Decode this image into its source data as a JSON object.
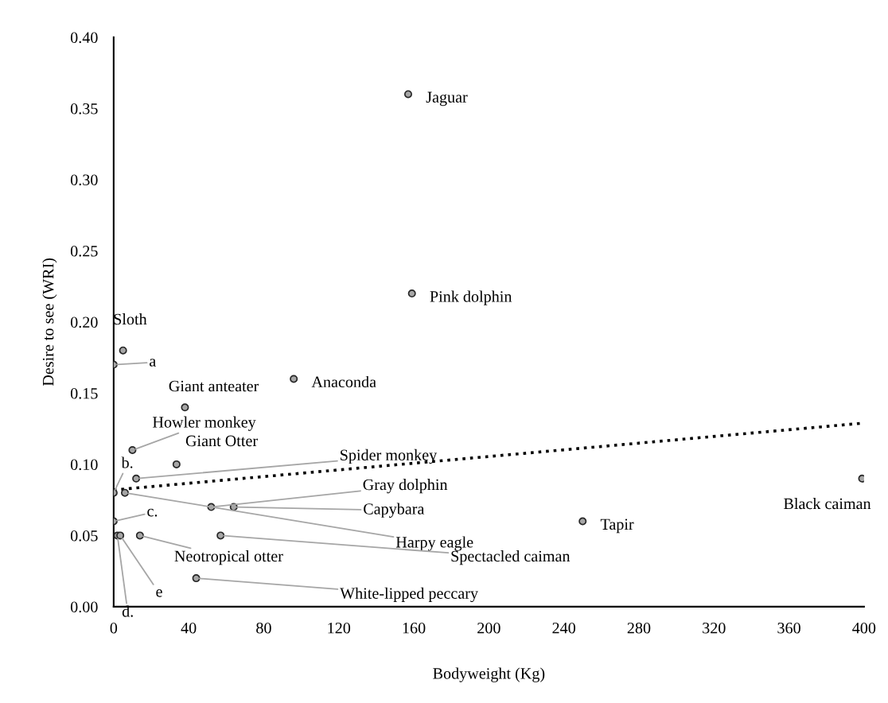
{
  "chart_data": {
    "type": "scatter",
    "xlabel": "Bodyweight (Kg)",
    "ylabel": "Desire to see (WRI)",
    "xlim": [
      0,
      400
    ],
    "xticks": [
      0,
      40,
      80,
      120,
      160,
      200,
      240,
      280,
      320,
      360,
      400
    ],
    "ylim": [
      0,
      0.4
    ],
    "yticks": [
      {
        "value": 0,
        "label": "0.00"
      },
      {
        "value": 0.05,
        "label": "0.05"
      },
      {
        "value": 0.1,
        "label": "0.10"
      },
      {
        "value": 0.15,
        "label": "0.15"
      },
      {
        "value": 0.2,
        "label": "0.20"
      },
      {
        "value": 0.25,
        "label": "0.25"
      },
      {
        "value": 0.3,
        "label": "0.30"
      },
      {
        "value": 0.35,
        "label": "0.35"
      },
      {
        "value": 0.4,
        "label": "0.40"
      }
    ],
    "grid": false,
    "legend": false,
    "marker": "circle",
    "series": [
      {
        "color": "#a6a6a6",
        "x": [
          157,
          159,
          5,
          0,
          96,
          38,
          10,
          33.5,
          12,
          0,
          6,
          52,
          64,
          0,
          2,
          3.5,
          14,
          57,
          44,
          250,
          399
        ],
        "values": [
          0.36,
          0.22,
          0.18,
          0.17,
          0.16,
          0.14,
          0.11,
          0.1,
          0.09,
          0.08,
          0.08,
          0.07,
          0.07,
          0.06,
          0.05,
          0.05,
          0.05,
          0.05,
          0.02,
          0.06,
          0.09
        ]
      },
      {
        "type": "line",
        "color": "#000000",
        "line_style": "dotted",
        "marker": "none",
        "x": [
          0,
          400
        ],
        "values": [
          0.082,
          0.129
        ]
      }
    ],
    "annotations": [
      {
        "text": "Jaguar",
        "x": 157,
        "y": 0.36
      },
      {
        "text": "Pink dolphin",
        "x": 159,
        "y": 0.22
      },
      {
        "text": "Sloth",
        "x": 5,
        "y": 0.18
      },
      {
        "text": "a",
        "x": 0,
        "y": 0.17
      },
      {
        "text": "Anaconda",
        "x": 96,
        "y": 0.16
      },
      {
        "text": "Giant anteater",
        "x": 38,
        "y": 0.14
      },
      {
        "text": "Howler monkey",
        "x": 10,
        "y": 0.11
      },
      {
        "text": "Giant Otter",
        "x": 33.5,
        "y": 0.1
      },
      {
        "text": "Spider monkey",
        "x": 12,
        "y": 0.09
      },
      {
        "text": "b.",
        "x": 0,
        "y": 0.08
      },
      {
        "text": "Harpy eagle",
        "x": 6,
        "y": 0.08
      },
      {
        "text": "Gray dolphin",
        "x": 52,
        "y": 0.07
      },
      {
        "text": "Capybara",
        "x": 64,
        "y": 0.07
      },
      {
        "text": "c.",
        "x": 0,
        "y": 0.06
      },
      {
        "text": "d.",
        "x": 2,
        "y": 0.05
      },
      {
        "text": "e",
        "x": 3.5,
        "y": 0.05
      },
      {
        "text": "Neotropical otter",
        "x": 14,
        "y": 0.05
      },
      {
        "text": "Spectacled caiman",
        "x": 57,
        "y": 0.05
      },
      {
        "text": "White-lipped peccary",
        "x": 44,
        "y": 0.02
      },
      {
        "text": "Tapir",
        "x": 250,
        "y": 0.06
      },
      {
        "text": "Black caiman",
        "x": 399,
        "y": 0.09
      }
    ]
  }
}
